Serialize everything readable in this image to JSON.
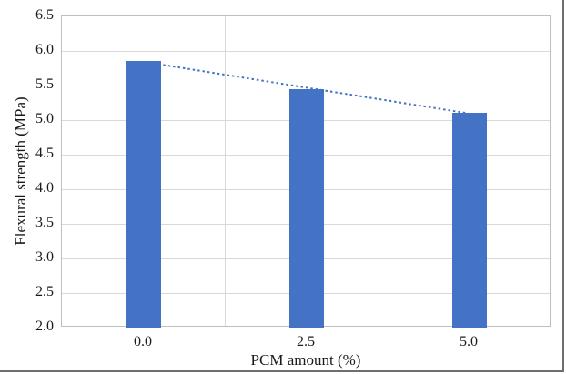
{
  "figure": {
    "background": "#ffffff",
    "frame_border_color": "#6e6e6e"
  },
  "chart_data": {
    "type": "bar",
    "title": "",
    "xlabel": "PCM amount (%)",
    "ylabel": "Flexural strength (MPa)",
    "categories": [
      "0.0",
      "2.5",
      "5.0"
    ],
    "values": [
      5.85,
      5.45,
      5.1
    ],
    "ylim": [
      2.0,
      6.5
    ],
    "ytick_step": 0.5,
    "yticks": [
      "6.5",
      "6.0",
      "5.5",
      "5.0",
      "4.5",
      "4.0",
      "3.5",
      "3.0",
      "2.5",
      "2.0"
    ],
    "grid": "horizontal gridlines each 0.5 MPa, vertical gridlines at category boundaries",
    "legend_position": "none",
    "bar_color": "#4472c4",
    "gridline_color": "#d9d9d9",
    "axis_line_color": "#bfbfbf",
    "trendline": {
      "type": "linear",
      "style": "dotted",
      "color": "#4472c4",
      "endpoints_values": [
        5.84,
        5.09
      ]
    }
  }
}
